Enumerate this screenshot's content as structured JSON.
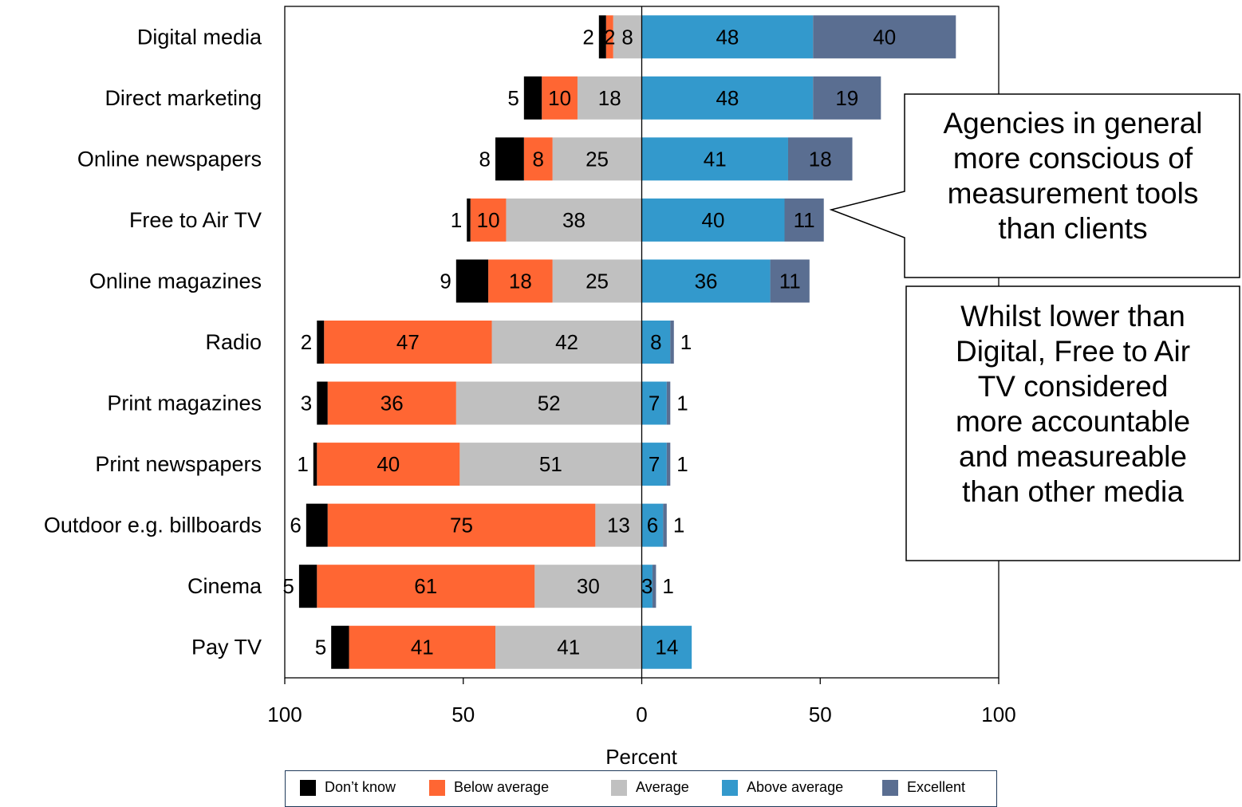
{
  "chart_data": {
    "type": "bar",
    "orientation": "horizontal-diverging",
    "categories": [
      "Digital media",
      "Direct marketing",
      "Online newspapers",
      "Free to Air TV",
      "Online magazines",
      "Radio",
      "Print magazines",
      "Print newspapers",
      "Outdoor e.g. billboards",
      "Cinema",
      "Pay TV"
    ],
    "series": [
      {
        "name": "Don’t know",
        "side": "negative",
        "color": "#000000",
        "values": [
          2,
          5,
          8,
          1,
          9,
          2,
          3,
          1,
          6,
          5,
          5
        ]
      },
      {
        "name": "Below average",
        "side": "negative",
        "color": "#ff6633",
        "values": [
          2,
          10,
          8,
          10,
          18,
          47,
          36,
          40,
          75,
          61,
          41
        ]
      },
      {
        "name": "Average",
        "side": "negative",
        "color": "#c0c0c0",
        "values": [
          8,
          18,
          25,
          38,
          25,
          42,
          52,
          51,
          13,
          30,
          41
        ]
      },
      {
        "name": "Above average",
        "side": "positive",
        "color": "#3399cc",
        "values": [
          48,
          48,
          41,
          40,
          36,
          8,
          7,
          7,
          6,
          3,
          14
        ]
      },
      {
        "name": "Excellent",
        "side": "positive",
        "color": "#5a6e91",
        "values": [
          40,
          19,
          18,
          11,
          11,
          1,
          1,
          1,
          1,
          1,
          null
        ]
      }
    ],
    "xlabel": "Percent",
    "xlim": [
      -100,
      100
    ],
    "xticks": [
      -100,
      -50,
      0,
      50,
      100
    ],
    "xtick_labels": [
      "100",
      "50",
      "0",
      "50",
      "100"
    ],
    "grid": false,
    "legend_position": "bottom"
  },
  "annotations": {
    "callout_1": [
      "Agencies in general",
      "more conscious of",
      "measurement tools",
      "than clients"
    ],
    "callout_2": [
      "Whilst lower than",
      "Digital, Free to Air",
      "TV considered",
      "more accountable",
      "and measureable",
      "than other media"
    ]
  },
  "legend": {
    "items": [
      {
        "label": "Don’t know",
        "color": "#000000"
      },
      {
        "label": "Below average",
        "color": "#ff6633"
      },
      {
        "label": "Average",
        "color": "#c0c0c0"
      },
      {
        "label": "Above average",
        "color": "#3399cc"
      },
      {
        "label": "Excellent",
        "color": "#5a6e91"
      }
    ]
  }
}
